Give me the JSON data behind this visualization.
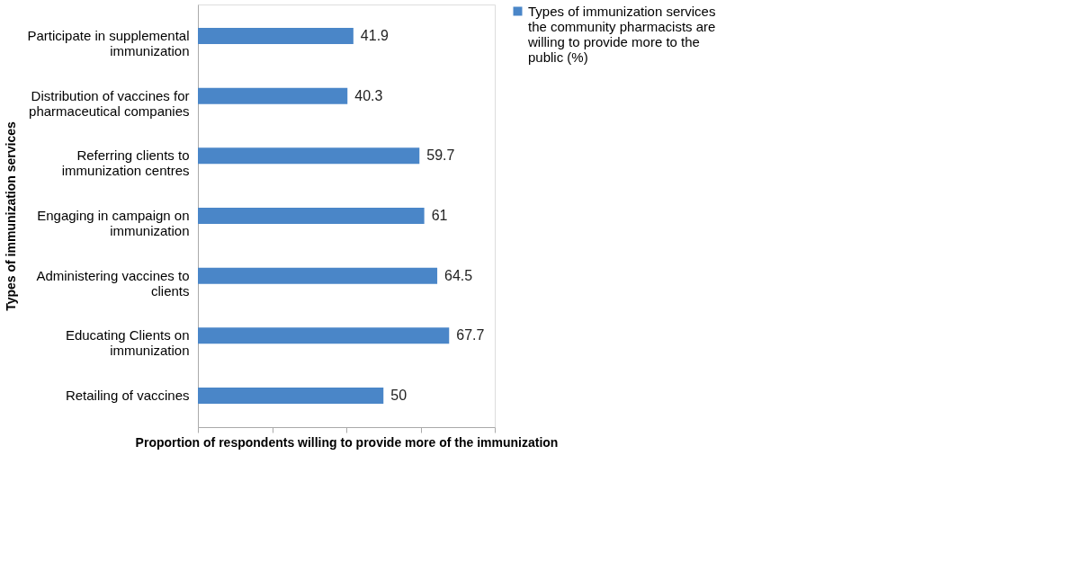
{
  "chart_data": {
    "type": "bar",
    "orientation": "horizontal",
    "xlabel": "Proportion of respondents willing to provide more of the immunization",
    "ylabel": "Types of immunization services",
    "categories": [
      "Participate in supplemental immunization",
      "Distribution of vaccines for pharmaceutical companies",
      "Referring clients to immunization centres",
      "Engaging in campaign on immunization",
      "Administering vaccines to clients",
      "Educating Clients on immunization",
      "Retailing of vaccines"
    ],
    "series": [
      {
        "name": "Types of immunization services the community pharmacists are willing to provide more to the public (%)",
        "color": "#4a86c8",
        "values": [
          41.9,
          40.3,
          59.7,
          61,
          64.5,
          67.7,
          50
        ]
      }
    ],
    "xlim": [
      0,
      80
    ],
    "xticks": [
      {
        "value": 0,
        "label": null
      },
      {
        "value": 20,
        "label": null
      },
      {
        "value": 40,
        "label": null
      },
      {
        "value": 60,
        "label": null
      },
      {
        "value": 80,
        "label": null
      }
    ],
    "tick_labels": "y",
    "data_labels": true,
    "legend": "right",
    "grid": false
  }
}
